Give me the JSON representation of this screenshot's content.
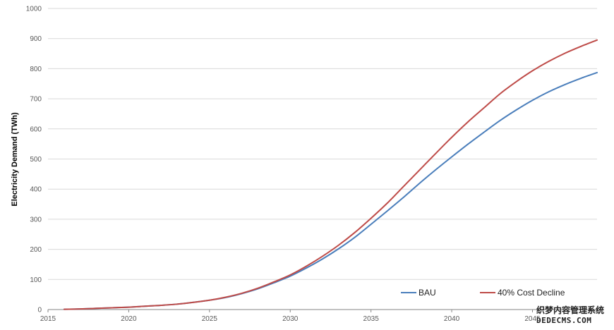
{
  "chart_data": {
    "type": "line",
    "title": "",
    "xlabel": "",
    "ylabel": "Electricity Demand (TWh)",
    "xlim": [
      2015,
      2049
    ],
    "ylim": [
      0,
      1000
    ],
    "x_ticks": [
      "2015",
      "2020",
      "2025",
      "2030",
      "2035",
      "2040",
      "2045"
    ],
    "y_ticks": [
      "0",
      "100",
      "200",
      "300",
      "400",
      "500",
      "600",
      "700",
      "800",
      "900",
      "1000"
    ],
    "grid": true,
    "legend_position": "bottom-right",
    "x": [
      2016,
      2017,
      2018,
      2019,
      2020,
      2021,
      2022,
      2023,
      2024,
      2025,
      2026,
      2027,
      2028,
      2029,
      2030,
      2031,
      2032,
      2033,
      2034,
      2035,
      2036,
      2037,
      2038,
      2039,
      2040,
      2041,
      2042,
      2043,
      2044,
      2045,
      2046,
      2047,
      2048,
      2049
    ],
    "series": [
      {
        "name": "BAU",
        "color": "#4a7ebb",
        "values": [
          1,
          2,
          4,
          6,
          8,
          11,
          14,
          18,
          24,
          31,
          40,
          53,
          69,
          89,
          111,
          138,
          168,
          202,
          240,
          283,
          327,
          372,
          419,
          464,
          507,
          549,
          589,
          628,
          663,
          695,
          723,
          747,
          768,
          787
        ]
      },
      {
        "name": "40% Cost Decline",
        "color": "#be4b48",
        "values": [
          1,
          2,
          4,
          6,
          8,
          11,
          14,
          18,
          24,
          31,
          41,
          54,
          71,
          92,
          115,
          144,
          177,
          214,
          256,
          303,
          353,
          408,
          463,
          518,
          572,
          623,
          670,
          717,
          757,
          793,
          824,
          851,
          874,
          895
        ]
      }
    ]
  },
  "watermark": {
    "line1": "织梦内容管理系统",
    "line2": "DEDECMS.COM"
  }
}
